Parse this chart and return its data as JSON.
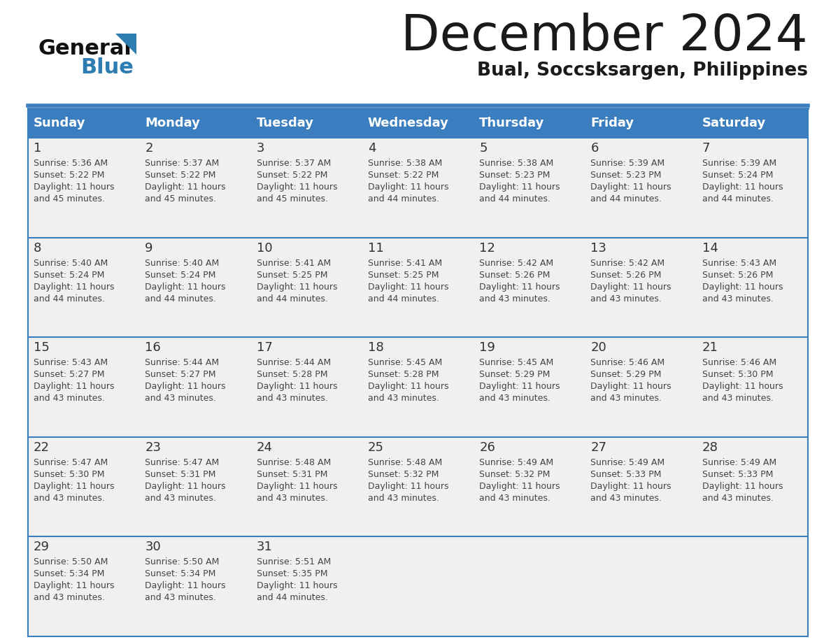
{
  "title": "December 2024",
  "subtitle": "Bual, Soccsksargen, Philippines",
  "days_of_week": [
    "Sunday",
    "Monday",
    "Tuesday",
    "Wednesday",
    "Thursday",
    "Friday",
    "Saturday"
  ],
  "header_bg_color": "#3a7ebf",
  "header_text_color": "#ffffff",
  "cell_bg_color": "#f0f0f0",
  "border_color": "#3a7ebf",
  "day_num_color": "#333333",
  "cell_text_color": "#444444",
  "title_color": "#1a1a1a",
  "subtitle_color": "#1a1a1a",
  "logo_general_color": "#111111",
  "logo_blue_color": "#2e7db2",
  "calendar_data": [
    [
      {
        "day": 1,
        "sunrise": "5:36 AM",
        "sunset": "5:22 PM",
        "daylight": "11 hours and 45 minutes."
      },
      {
        "day": 2,
        "sunrise": "5:37 AM",
        "sunset": "5:22 PM",
        "daylight": "11 hours and 45 minutes."
      },
      {
        "day": 3,
        "sunrise": "5:37 AM",
        "sunset": "5:22 PM",
        "daylight": "11 hours and 45 minutes."
      },
      {
        "day": 4,
        "sunrise": "5:38 AM",
        "sunset": "5:22 PM",
        "daylight": "11 hours and 44 minutes."
      },
      {
        "day": 5,
        "sunrise": "5:38 AM",
        "sunset": "5:23 PM",
        "daylight": "11 hours and 44 minutes."
      },
      {
        "day": 6,
        "sunrise": "5:39 AM",
        "sunset": "5:23 PM",
        "daylight": "11 hours and 44 minutes."
      },
      {
        "day": 7,
        "sunrise": "5:39 AM",
        "sunset": "5:24 PM",
        "daylight": "11 hours and 44 minutes."
      }
    ],
    [
      {
        "day": 8,
        "sunrise": "5:40 AM",
        "sunset": "5:24 PM",
        "daylight": "11 hours and 44 minutes."
      },
      {
        "day": 9,
        "sunrise": "5:40 AM",
        "sunset": "5:24 PM",
        "daylight": "11 hours and 44 minutes."
      },
      {
        "day": 10,
        "sunrise": "5:41 AM",
        "sunset": "5:25 PM",
        "daylight": "11 hours and 44 minutes."
      },
      {
        "day": 11,
        "sunrise": "5:41 AM",
        "sunset": "5:25 PM",
        "daylight": "11 hours and 44 minutes."
      },
      {
        "day": 12,
        "sunrise": "5:42 AM",
        "sunset": "5:26 PM",
        "daylight": "11 hours and 43 minutes."
      },
      {
        "day": 13,
        "sunrise": "5:42 AM",
        "sunset": "5:26 PM",
        "daylight": "11 hours and 43 minutes."
      },
      {
        "day": 14,
        "sunrise": "5:43 AM",
        "sunset": "5:26 PM",
        "daylight": "11 hours and 43 minutes."
      }
    ],
    [
      {
        "day": 15,
        "sunrise": "5:43 AM",
        "sunset": "5:27 PM",
        "daylight": "11 hours and 43 minutes."
      },
      {
        "day": 16,
        "sunrise": "5:44 AM",
        "sunset": "5:27 PM",
        "daylight": "11 hours and 43 minutes."
      },
      {
        "day": 17,
        "sunrise": "5:44 AM",
        "sunset": "5:28 PM",
        "daylight": "11 hours and 43 minutes."
      },
      {
        "day": 18,
        "sunrise": "5:45 AM",
        "sunset": "5:28 PM",
        "daylight": "11 hours and 43 minutes."
      },
      {
        "day": 19,
        "sunrise": "5:45 AM",
        "sunset": "5:29 PM",
        "daylight": "11 hours and 43 minutes."
      },
      {
        "day": 20,
        "sunrise": "5:46 AM",
        "sunset": "5:29 PM",
        "daylight": "11 hours and 43 minutes."
      },
      {
        "day": 21,
        "sunrise": "5:46 AM",
        "sunset": "5:30 PM",
        "daylight": "11 hours and 43 minutes."
      }
    ],
    [
      {
        "day": 22,
        "sunrise": "5:47 AM",
        "sunset": "5:30 PM",
        "daylight": "11 hours and 43 minutes."
      },
      {
        "day": 23,
        "sunrise": "5:47 AM",
        "sunset": "5:31 PM",
        "daylight": "11 hours and 43 minutes."
      },
      {
        "day": 24,
        "sunrise": "5:48 AM",
        "sunset": "5:31 PM",
        "daylight": "11 hours and 43 minutes."
      },
      {
        "day": 25,
        "sunrise": "5:48 AM",
        "sunset": "5:32 PM",
        "daylight": "11 hours and 43 minutes."
      },
      {
        "day": 26,
        "sunrise": "5:49 AM",
        "sunset": "5:32 PM",
        "daylight": "11 hours and 43 minutes."
      },
      {
        "day": 27,
        "sunrise": "5:49 AM",
        "sunset": "5:33 PM",
        "daylight": "11 hours and 43 minutes."
      },
      {
        "day": 28,
        "sunrise": "5:49 AM",
        "sunset": "5:33 PM",
        "daylight": "11 hours and 43 minutes."
      }
    ],
    [
      {
        "day": 29,
        "sunrise": "5:50 AM",
        "sunset": "5:34 PM",
        "daylight": "11 hours and 43 minutes."
      },
      {
        "day": 30,
        "sunrise": "5:50 AM",
        "sunset": "5:34 PM",
        "daylight": "11 hours and 43 minutes."
      },
      {
        "day": 31,
        "sunrise": "5:51 AM",
        "sunset": "5:35 PM",
        "daylight": "11 hours and 44 minutes."
      },
      null,
      null,
      null,
      null
    ]
  ]
}
